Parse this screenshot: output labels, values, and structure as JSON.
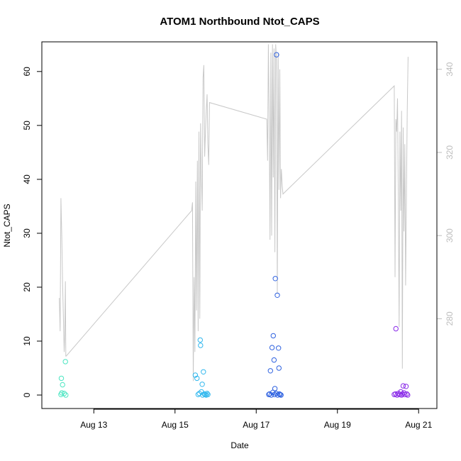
{
  "chart_data": {
    "type": "scatter",
    "title": "ATOM1 Northbound Ntot_CAPS",
    "xlabel": "Date",
    "ylabel": "Ntot_CAPS",
    "x_axis": {
      "unit": "days since Aug 12 00:00",
      "range": [
        -0.28,
        9.45
      ],
      "ticks": [
        {
          "value": 1,
          "label": "Aug 13"
        },
        {
          "value": 3,
          "label": "Aug 15"
        },
        {
          "value": 5,
          "label": "Aug 17"
        },
        {
          "value": 7,
          "label": "Aug 19"
        },
        {
          "value": 9,
          "label": "Aug 21"
        }
      ]
    },
    "y_axis": {
      "range": [
        -2.5,
        65.5
      ],
      "ticks": [
        0,
        10,
        20,
        30,
        40,
        50,
        60
      ]
    },
    "y2_axis": {
      "range": [
        258.4,
        346.6
      ],
      "ticks": [
        280,
        300,
        320,
        340
      ],
      "color": "#bdbdbd"
    },
    "grid": false,
    "points": [
      {
        "x": 0.2,
        "y": 3.1,
        "color": "#4de6c2"
      },
      {
        "x": 0.21,
        "y": 0.4,
        "color": "#4de6c2"
      },
      {
        "x": 0.23,
        "y": 1.9,
        "color": "#4de6c2"
      },
      {
        "x": 0.19,
        "y": 0.1,
        "color": "#4de6c2"
      },
      {
        "x": 0.27,
        "y": 0.3,
        "color": "#4de6c2"
      },
      {
        "x": 0.31,
        "y": 0.0,
        "color": "#4de6c2"
      },
      {
        "x": 0.3,
        "y": 6.2,
        "color": "#4de6c2"
      },
      {
        "x": 3.5,
        "y": 3.7,
        "color": "#32b8ee"
      },
      {
        "x": 3.54,
        "y": 3.1,
        "color": "#32b8ee"
      },
      {
        "x": 3.57,
        "y": 0.1,
        "color": "#32b8ee"
      },
      {
        "x": 3.6,
        "y": 0.3,
        "color": "#32b8ee"
      },
      {
        "x": 3.62,
        "y": 10.2,
        "color": "#32b8ee"
      },
      {
        "x": 3.63,
        "y": 9.2,
        "color": "#32b8ee"
      },
      {
        "x": 3.65,
        "y": 0.6,
        "color": "#32b8ee"
      },
      {
        "x": 3.67,
        "y": 2.0,
        "color": "#32b8ee"
      },
      {
        "x": 3.68,
        "y": 0.0,
        "color": "#32b8ee"
      },
      {
        "x": 3.7,
        "y": 4.3,
        "color": "#32b8ee"
      },
      {
        "x": 3.72,
        "y": 0.2,
        "color": "#32b8ee"
      },
      {
        "x": 3.74,
        "y": 0.1,
        "color": "#32b8ee"
      },
      {
        "x": 3.77,
        "y": 0.0,
        "color": "#32b8ee"
      },
      {
        "x": 3.79,
        "y": 0.3,
        "color": "#32b8ee"
      },
      {
        "x": 3.81,
        "y": 0.1,
        "color": "#32b8ee"
      },
      {
        "x": 5.31,
        "y": 0.1,
        "color": "#2f62e0"
      },
      {
        "x": 5.33,
        "y": 0.2,
        "color": "#2f62e0"
      },
      {
        "x": 5.35,
        "y": 4.5,
        "color": "#2f62e0"
      },
      {
        "x": 5.37,
        "y": 0.0,
        "color": "#2f62e0"
      },
      {
        "x": 5.39,
        "y": 8.8,
        "color": "#2f62e0"
      },
      {
        "x": 5.41,
        "y": 0.5,
        "color": "#2f62e0"
      },
      {
        "x": 5.42,
        "y": 11.0,
        "color": "#2f62e0"
      },
      {
        "x": 5.44,
        "y": 6.5,
        "color": "#2f62e0"
      },
      {
        "x": 5.45,
        "y": 0.1,
        "color": "#2f62e0"
      },
      {
        "x": 5.46,
        "y": 1.2,
        "color": "#2f62e0"
      },
      {
        "x": 5.47,
        "y": 21.6,
        "color": "#2f62e0"
      },
      {
        "x": 5.49,
        "y": 0.3,
        "color": "#2f62e0"
      },
      {
        "x": 5.5,
        "y": 63.1,
        "color": "#2f62e0"
      },
      {
        "x": 5.52,
        "y": 18.5,
        "color": "#2f62e0"
      },
      {
        "x": 5.53,
        "y": 0.0,
        "color": "#2f62e0"
      },
      {
        "x": 5.55,
        "y": 8.7,
        "color": "#2f62e0"
      },
      {
        "x": 5.56,
        "y": 5.0,
        "color": "#2f62e0"
      },
      {
        "x": 5.57,
        "y": 0.2,
        "color": "#2f62e0"
      },
      {
        "x": 5.59,
        "y": 0.1,
        "color": "#2f62e0"
      },
      {
        "x": 5.61,
        "y": 0.0,
        "color": "#2f62e0"
      },
      {
        "x": 8.4,
        "y": 0.1,
        "color": "#8a2be8"
      },
      {
        "x": 8.43,
        "y": 0.2,
        "color": "#8a2be8"
      },
      {
        "x": 8.44,
        "y": 12.3,
        "color": "#8a2be8"
      },
      {
        "x": 8.47,
        "y": 0.0,
        "color": "#8a2be8"
      },
      {
        "x": 8.5,
        "y": 0.3,
        "color": "#8a2be8"
      },
      {
        "x": 8.53,
        "y": 0.1,
        "color": "#8a2be8"
      },
      {
        "x": 8.56,
        "y": 0.6,
        "color": "#8a2be8"
      },
      {
        "x": 8.58,
        "y": 0.0,
        "color": "#8a2be8"
      },
      {
        "x": 8.6,
        "y": 0.2,
        "color": "#8a2be8"
      },
      {
        "x": 8.62,
        "y": 1.7,
        "color": "#8a2be8"
      },
      {
        "x": 8.64,
        "y": 0.4,
        "color": "#8a2be8"
      },
      {
        "x": 8.66,
        "y": 0.1,
        "color": "#8a2be8"
      },
      {
        "x": 8.69,
        "y": 1.6,
        "color": "#8a2be8"
      },
      {
        "x": 8.71,
        "y": 0.2,
        "color": "#8a2be8"
      },
      {
        "x": 8.73,
        "y": 0.0,
        "color": "#8a2be8"
      }
    ],
    "secondary_line": {
      "color": "#c8c8c8",
      "axis": "right",
      "x": [
        0.15,
        0.17,
        0.19,
        0.21,
        0.23,
        0.25,
        0.27,
        0.28,
        0.29,
        0.3,
        0.31,
        0.32,
        3.41,
        3.43,
        3.45,
        3.47,
        3.49,
        3.51,
        3.53,
        3.55,
        3.57,
        3.59,
        3.61,
        3.63,
        3.65,
        3.67,
        3.69,
        3.71,
        3.73,
        3.75,
        3.77,
        3.79,
        3.81,
        3.83,
        3.85,
        5.26,
        5.28,
        5.3,
        5.32,
        5.34,
        5.36,
        5.38,
        5.4,
        5.42,
        5.44,
        5.46,
        5.48,
        5.5,
        5.52,
        5.54,
        5.56,
        5.58,
        5.6,
        5.62,
        5.64,
        5.66,
        8.4,
        8.42,
        8.44,
        8.46,
        8.48,
        8.5,
        8.52,
        8.54,
        8.56,
        8.58,
        8.6,
        8.62,
        8.64,
        8.66,
        8.68,
        8.7,
        8.72,
        8.74
      ],
      "y": [
        285,
        277,
        309,
        300,
        289,
        281,
        272,
        275,
        280,
        289,
        271,
        271,
        306,
        308,
        265,
        290,
        272,
        313,
        282,
        318,
        277,
        325,
        280,
        327,
        314,
        306,
        338,
        341,
        319,
        325,
        330,
        334,
        322,
        317,
        332,
        328,
        318,
        346,
        328,
        299,
        344,
        300,
        346,
        314,
        345,
        296,
        346,
        342,
        286,
        344,
        311,
        340,
        309,
        316,
        312,
        310,
        336,
        290,
        328,
        325,
        333,
        309,
        278,
        325,
        306,
        330,
        268,
        326,
        301,
        322,
        288,
        310,
        330,
        343
      ]
    }
  }
}
